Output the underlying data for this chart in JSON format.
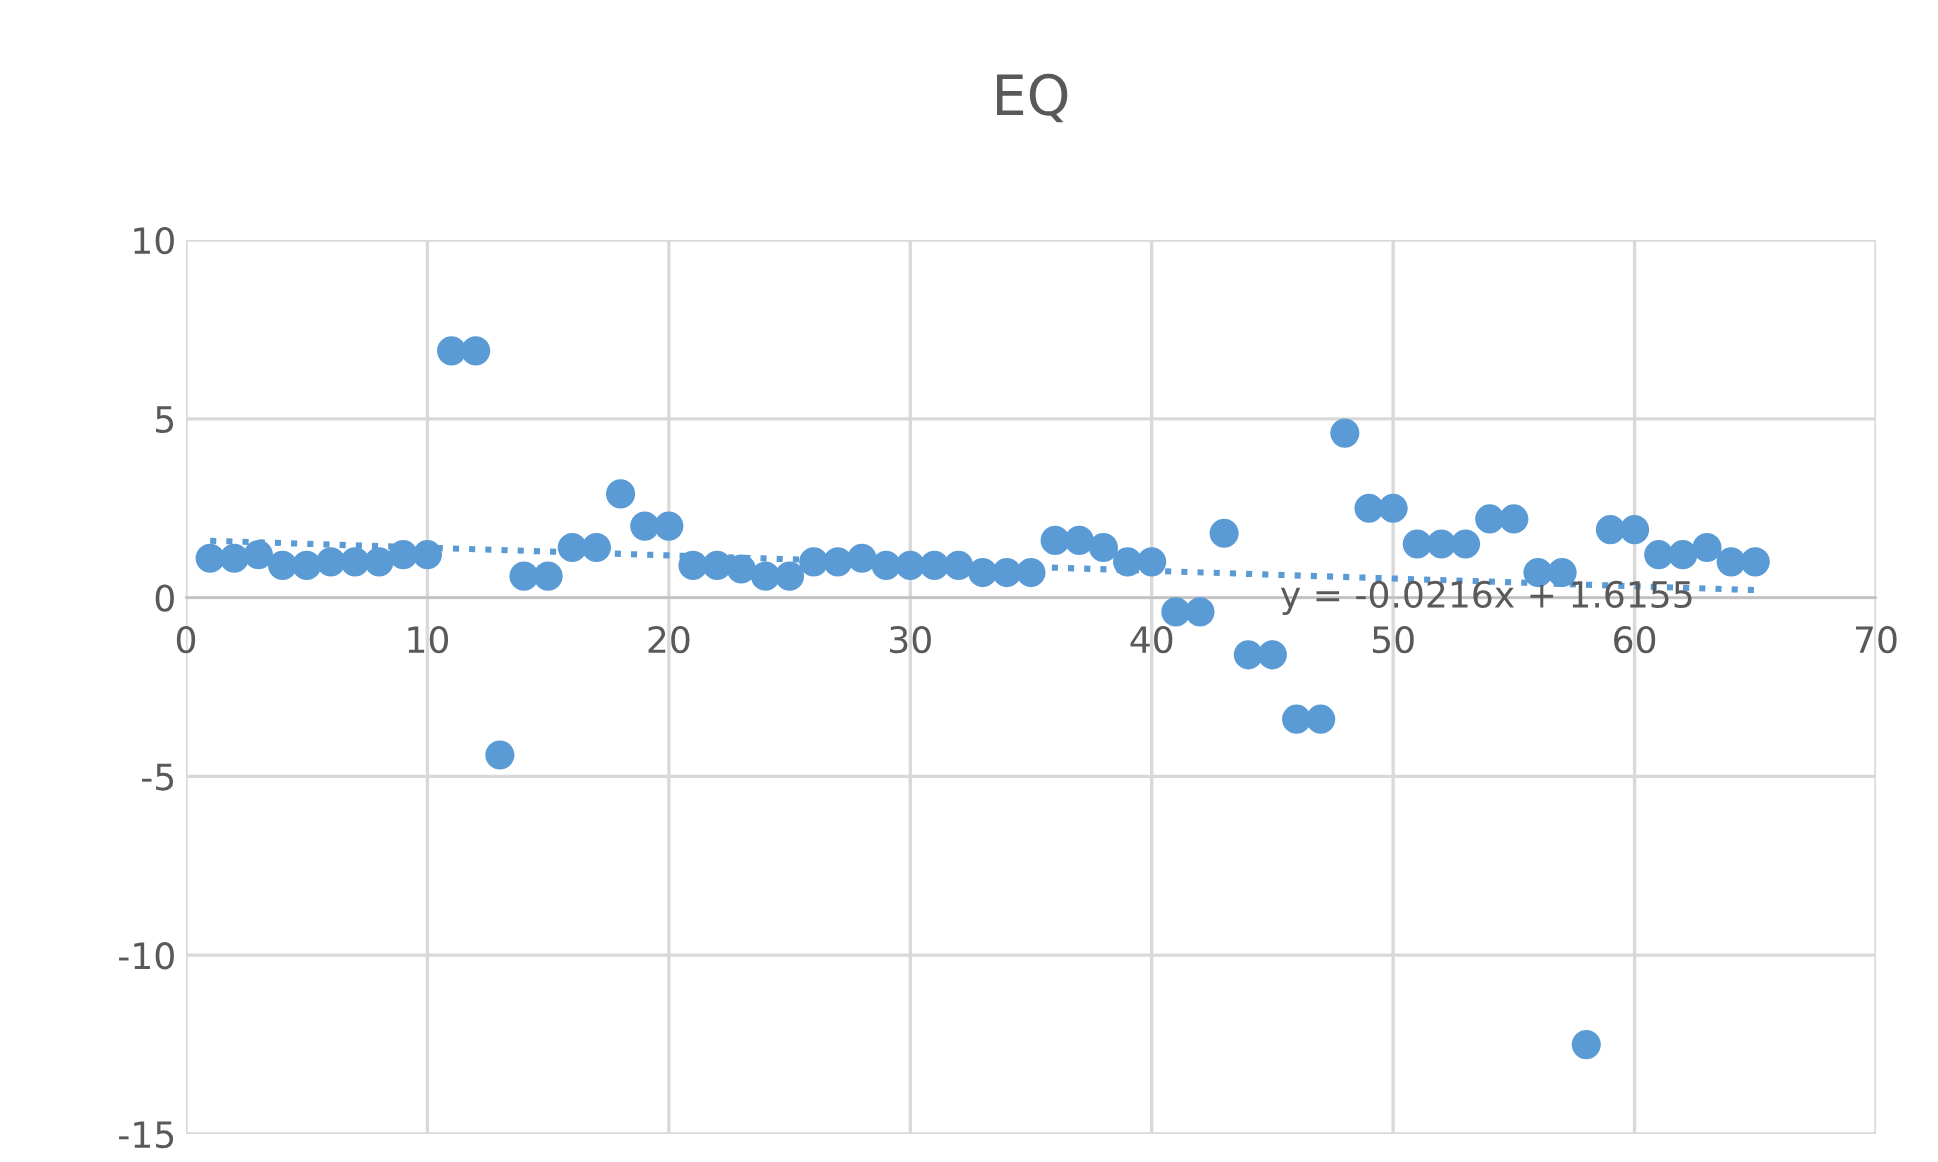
{
  "chart_data": {
    "type": "scatter",
    "title": "EQ",
    "series": [
      {
        "color": "#5b9bd5",
        "marker": "circle",
        "x": [
          1,
          2,
          3,
          4,
          5,
          6,
          7,
          8,
          9,
          10,
          11,
          12,
          13,
          14,
          15,
          16,
          17,
          18,
          19,
          20,
          21,
          22,
          23,
          24,
          25,
          26,
          27,
          28,
          29,
          30,
          31,
          32,
          33,
          34,
          35,
          36,
          37,
          38,
          39,
          40,
          41,
          42,
          43,
          44,
          45,
          46,
          47,
          48,
          49,
          50,
          51,
          52,
          53,
          54,
          55,
          56,
          57,
          58,
          59,
          60,
          61,
          62,
          63,
          64,
          65
        ],
        "values": [
          1.1,
          1.1,
          1.2,
          0.9,
          0.9,
          1.0,
          1.0,
          1.0,
          1.2,
          1.2,
          6.9,
          6.9,
          -4.4,
          0.6,
          0.6,
          1.4,
          1.4,
          2.9,
          2.0,
          2.0,
          0.9,
          0.9,
          0.8,
          0.6,
          0.6,
          1.0,
          1.0,
          1.1,
          0.9,
          0.9,
          0.9,
          0.9,
          0.7,
          0.7,
          0.7,
          1.6,
          1.6,
          1.4,
          1.0,
          1.0,
          -0.4,
          -0.4,
          1.8,
          -1.6,
          -1.6,
          -3.4,
          -3.4,
          4.6,
          2.5,
          2.5,
          1.5,
          1.5,
          1.5,
          2.2,
          2.2,
          0.7,
          0.7,
          -12.5,
          1.9,
          1.9,
          1.2,
          1.2,
          1.4,
          1.0,
          1.0
        ]
      },
      {
        "type": "line",
        "color": "#5b9bd5",
        "line_style": "dotted",
        "x": [
          1,
          65
        ],
        "values": [
          1.59,
          0.21
        ]
      }
    ],
    "annotations": [
      "y = -0.0216x + 1.6155"
    ],
    "xlim": [
      0,
      70
    ],
    "xticks": [
      0,
      10,
      20,
      30,
      40,
      50,
      60,
      70
    ],
    "ylim": [
      -15,
      10
    ],
    "yticks": [
      -15,
      -10,
      -5,
      0,
      5,
      10
    ],
    "grid": true,
    "legend": false
  }
}
